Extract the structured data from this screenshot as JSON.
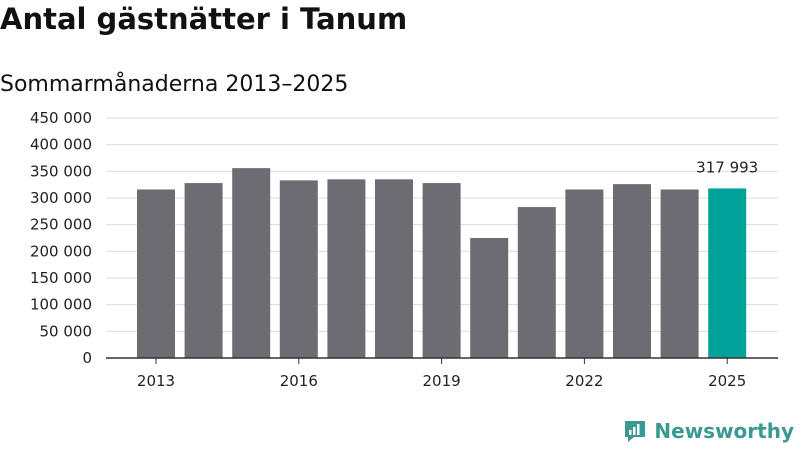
{
  "title": "Antal gästnätter i Tanum",
  "subtitle": "Sommarmånaderna 2013–2025",
  "brand": "Newsworthy",
  "colors": {
    "bar": "#6d6c72",
    "highlight": "#00a29a",
    "grid": "#dddddd",
    "axis": "#333333",
    "brand": "#3a9a93"
  },
  "chart_data": {
    "type": "bar",
    "categories": [
      "2013",
      "2014",
      "2015",
      "2016",
      "2017",
      "2018",
      "2019",
      "2020",
      "2021",
      "2022",
      "2023",
      "2024",
      "2025"
    ],
    "values": [
      316000,
      328000,
      356000,
      333000,
      335000,
      335000,
      328000,
      225000,
      283000,
      316000,
      326000,
      316000,
      317993
    ],
    "x_tick_labels": [
      "2013",
      "2016",
      "2019",
      "2022",
      "2025"
    ],
    "y_ticks": [
      0,
      50000,
      100000,
      150000,
      200000,
      250000,
      300000,
      350000,
      400000,
      450000
    ],
    "y_tick_labels": [
      "0",
      "50 000",
      "100 000",
      "150 000",
      "200 000",
      "250 000",
      "300 000",
      "350 000",
      "400 000",
      "450 000"
    ],
    "ylim": [
      0,
      450000
    ],
    "highlight_index": 12,
    "data_labels": [
      {
        "index": 12,
        "text": "317 993"
      }
    ],
    "grid": true
  }
}
